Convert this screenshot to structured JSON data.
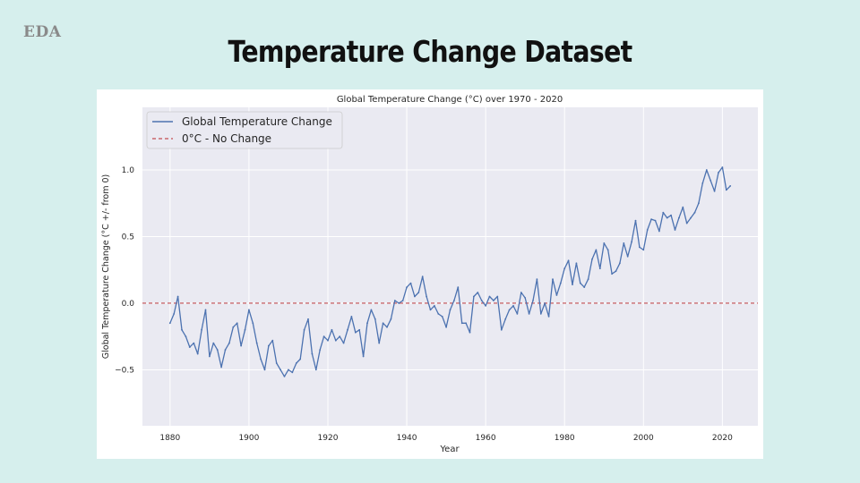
{
  "slide": {
    "section_tag": "EDA",
    "title": "Temperature Change Dataset"
  },
  "chart_data": {
    "type": "line",
    "title": "Global Temperature Change (°C) over 1970 - 2020",
    "xlabel": "Year",
    "ylabel": "Global Temperature Change (°C +/- from 0)",
    "xlim": [
      1873,
      2029
    ],
    "ylim": [
      -0.92,
      1.47
    ],
    "xticks": [
      1880,
      1900,
      1920,
      1940,
      1960,
      1980,
      2000,
      2020
    ],
    "yticks": [
      -0.5,
      0.0,
      0.5,
      1.0
    ],
    "grid": true,
    "legend_position": "top-left",
    "series": [
      {
        "name": "Global Temperature Change",
        "color": "#4c72b0",
        "style": "solid",
        "x": [
          1880,
          1881,
          1882,
          1883,
          1884,
          1885,
          1886,
          1887,
          1888,
          1889,
          1890,
          1891,
          1892,
          1893,
          1894,
          1895,
          1896,
          1897,
          1898,
          1899,
          1900,
          1901,
          1902,
          1903,
          1904,
          1905,
          1906,
          1907,
          1908,
          1909,
          1910,
          1911,
          1912,
          1913,
          1914,
          1915,
          1916,
          1917,
          1918,
          1919,
          1920,
          1921,
          1922,
          1923,
          1924,
          1925,
          1926,
          1927,
          1928,
          1929,
          1930,
          1931,
          1932,
          1933,
          1934,
          1935,
          1936,
          1937,
          1938,
          1939,
          1940,
          1941,
          1942,
          1943,
          1944,
          1945,
          1946,
          1947,
          1948,
          1949,
          1950,
          1951,
          1952,
          1953,
          1954,
          1955,
          1956,
          1957,
          1958,
          1959,
          1960,
          1961,
          1962,
          1963,
          1964,
          1965,
          1966,
          1967,
          1968,
          1969,
          1970,
          1971,
          1972,
          1973,
          1974,
          1975,
          1976,
          1977,
          1978,
          1979,
          1980,
          1981,
          1982,
          1983,
          1984,
          1985,
          1986,
          1987,
          1988,
          1989,
          1990,
          1991,
          1992,
          1993,
          1994,
          1995,
          1996,
          1997,
          1998,
          1999,
          2000,
          2001,
          2002,
          2003,
          2004,
          2005,
          2006,
          2007,
          2008,
          2009,
          2010,
          2011,
          2012,
          2013,
          2014,
          2015,
          2016,
          2017,
          2018,
          2019,
          2020,
          2021,
          2022
        ],
        "y": [
          -0.15,
          -0.08,
          0.05,
          -0.2,
          -0.25,
          -0.33,
          -0.3,
          -0.38,
          -0.2,
          -0.05,
          -0.4,
          -0.3,
          -0.35,
          -0.48,
          -0.35,
          -0.3,
          -0.18,
          -0.15,
          -0.32,
          -0.2,
          -0.05,
          -0.15,
          -0.3,
          -0.42,
          -0.5,
          -0.32,
          -0.28,
          -0.45,
          -0.5,
          -0.55,
          -0.5,
          -0.52,
          -0.45,
          -0.42,
          -0.2,
          -0.12,
          -0.38,
          -0.5,
          -0.35,
          -0.25,
          -0.28,
          -0.2,
          -0.28,
          -0.25,
          -0.3,
          -0.2,
          -0.1,
          -0.22,
          -0.2,
          -0.4,
          -0.15,
          -0.05,
          -0.12,
          -0.3,
          -0.15,
          -0.18,
          -0.12,
          0.02,
          0.0,
          0.02,
          0.12,
          0.15,
          0.05,
          0.08,
          0.2,
          0.05,
          -0.05,
          -0.02,
          -0.08,
          -0.1,
          -0.18,
          -0.05,
          0.02,
          0.12,
          -0.15,
          -0.15,
          -0.22,
          0.05,
          0.08,
          0.02,
          -0.02,
          0.05,
          0.02,
          0.05,
          -0.2,
          -0.12,
          -0.05,
          -0.02,
          -0.08,
          0.08,
          0.04,
          -0.08,
          0.02,
          0.18,
          -0.08,
          0.0,
          -0.1,
          0.18,
          0.06,
          0.15,
          0.26,
          0.32,
          0.14,
          0.3,
          0.15,
          0.12,
          0.18,
          0.33,
          0.4,
          0.26,
          0.45,
          0.4,
          0.22,
          0.24,
          0.3,
          0.45,
          0.35,
          0.46,
          0.62,
          0.42,
          0.4,
          0.55,
          0.63,
          0.62,
          0.54,
          0.68,
          0.64,
          0.66,
          0.55,
          0.64,
          0.72,
          0.6,
          0.64,
          0.68,
          0.75,
          0.9,
          1.0,
          0.92,
          0.84,
          0.98,
          1.02,
          0.85,
          0.88
        ]
      },
      {
        "name": "0°C - No Change",
        "color": "#c44e52",
        "style": "dashed",
        "y": 0.0
      }
    ]
  }
}
